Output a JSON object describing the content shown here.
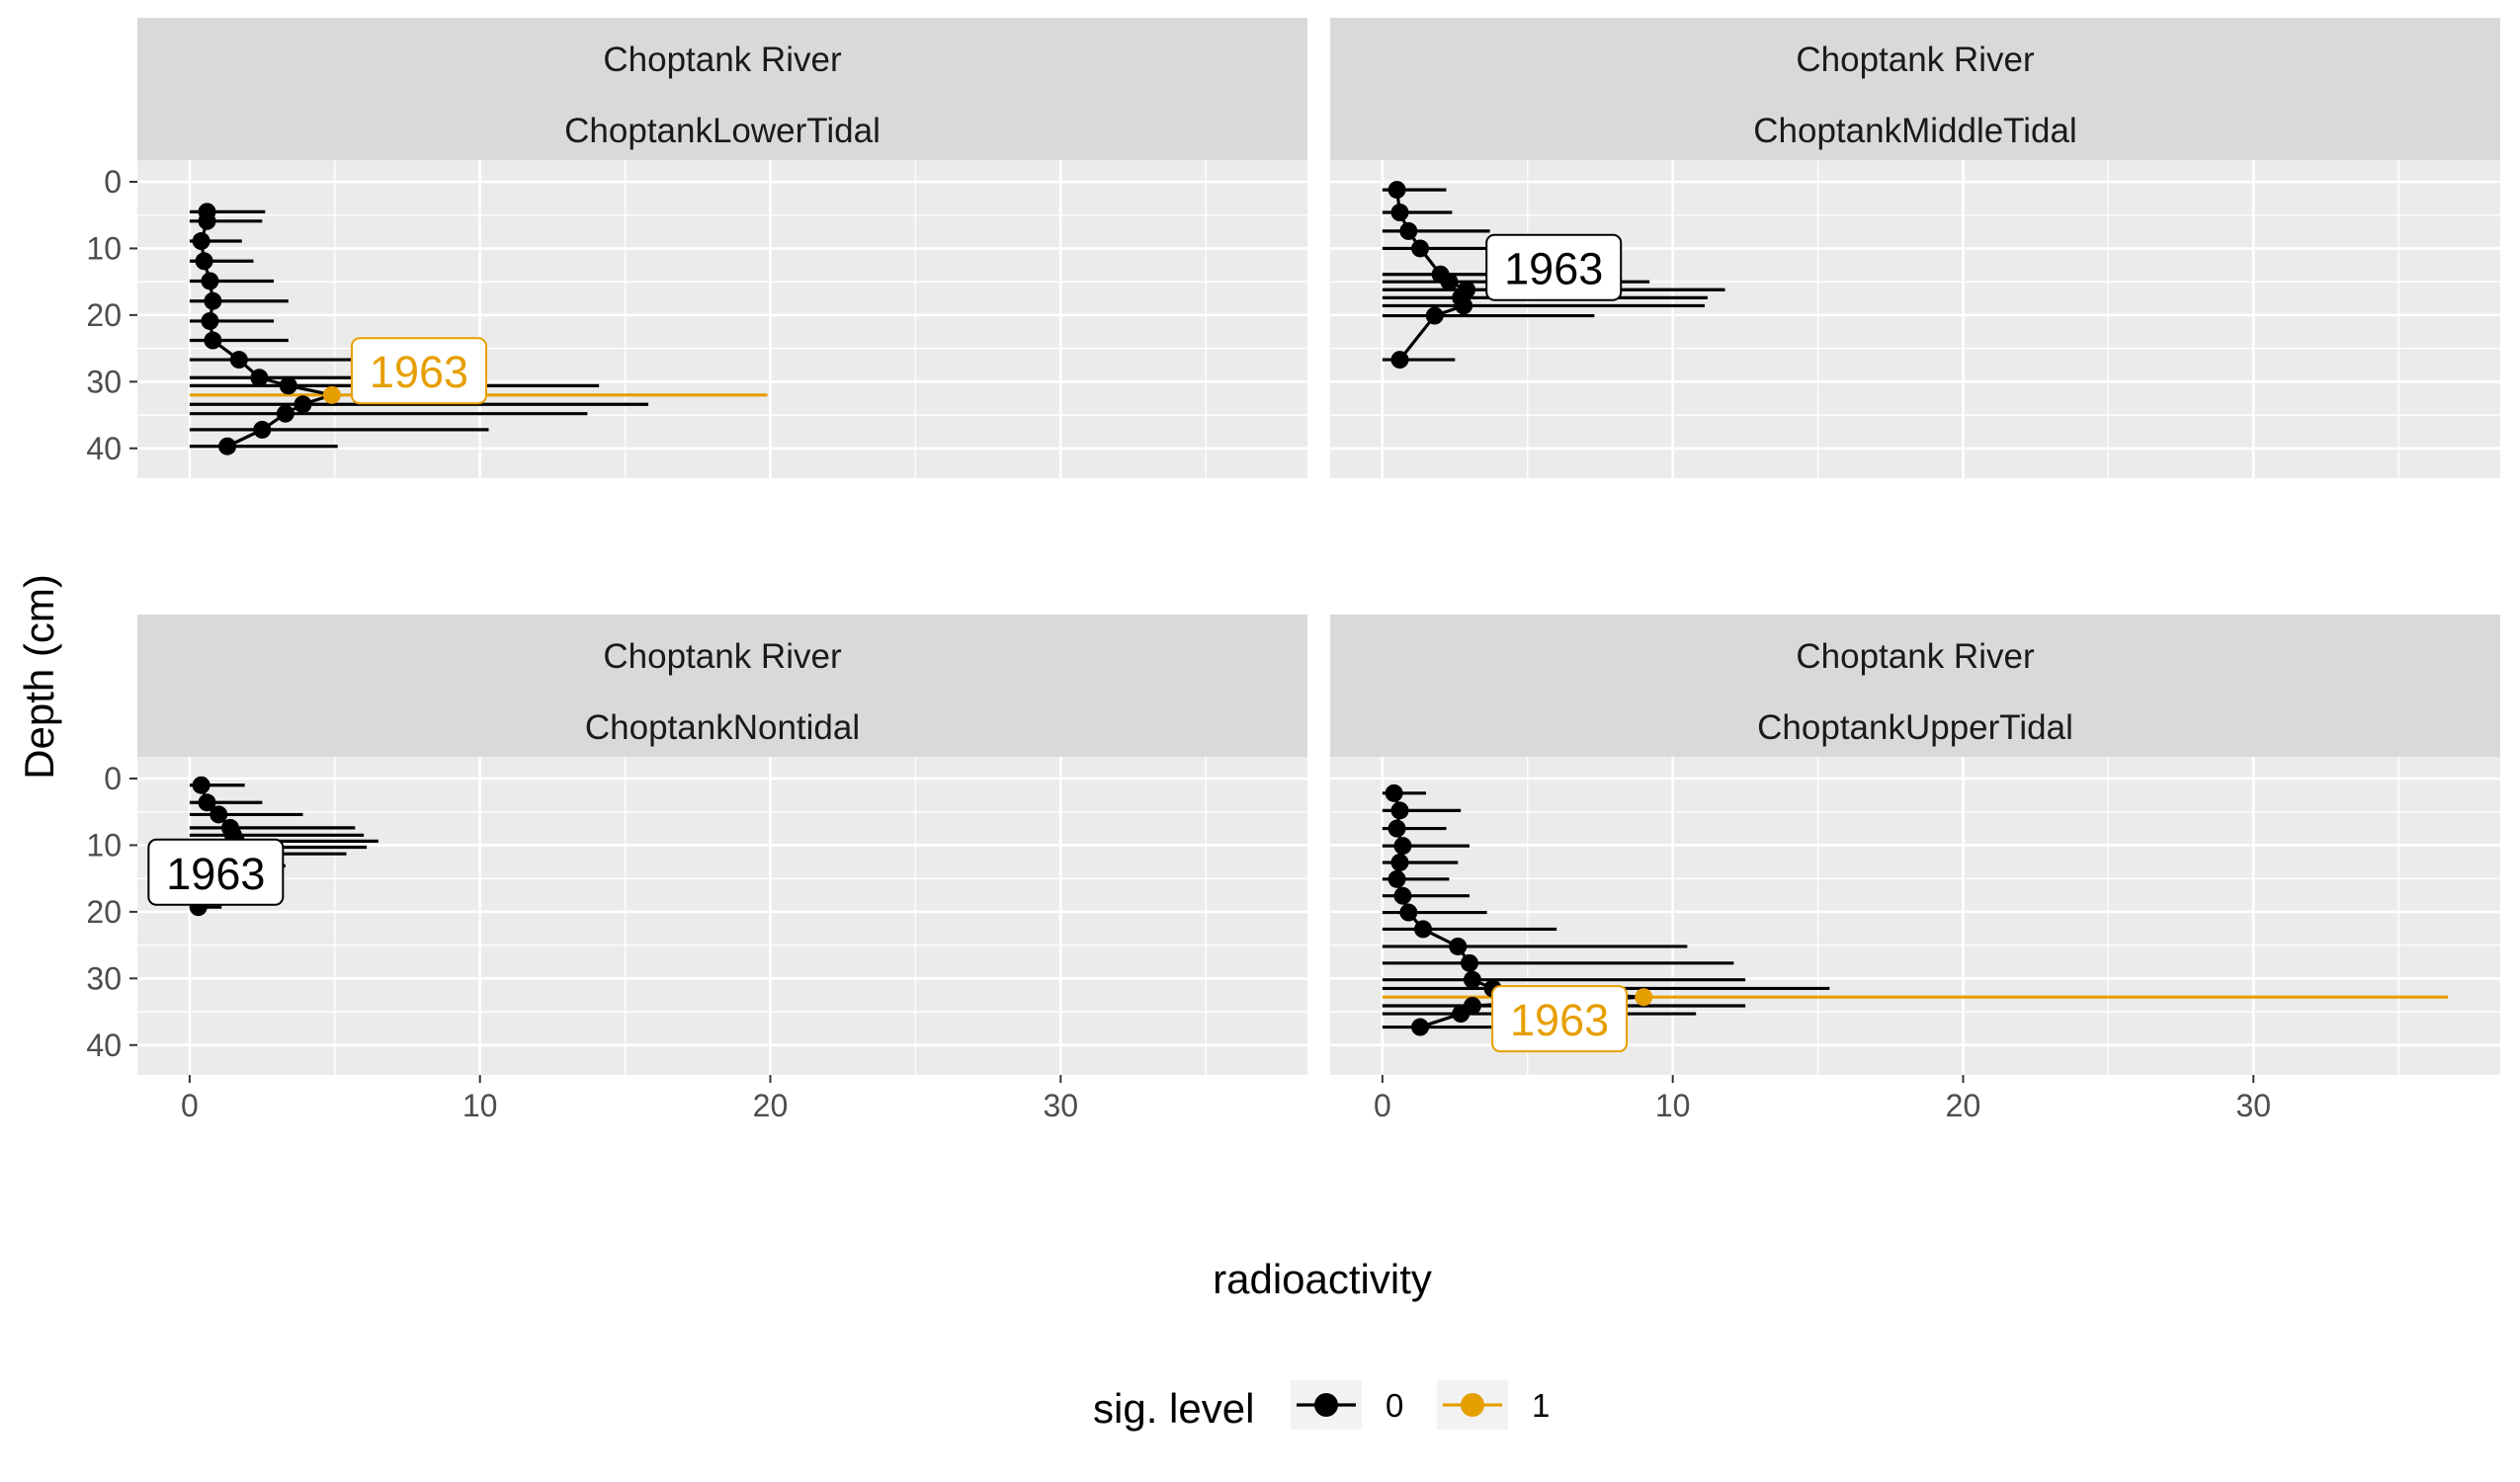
{
  "chart_data": {
    "type": "scatter",
    "xlabel": "radioactivity",
    "ylabel": "Depth (cm)",
    "xlim": [
      -1.8,
      38.5
    ],
    "ylim": [
      0,
      43
    ],
    "y_reversed": true,
    "x_ticks": [
      "0",
      "10",
      "20",
      "30"
    ],
    "y_ticks": [
      "0",
      "10",
      "20",
      "30",
      "40"
    ],
    "grid": true,
    "legend": {
      "title": "sig. level",
      "placement": "bottom",
      "entries": [
        {
          "label": "0",
          "color": "#000000"
        },
        {
          "label": "1",
          "color": "#E69F00"
        }
      ]
    },
    "colors": {
      "sig0": "#000000",
      "sig1": "#E69F00",
      "panel_bg": "#EBEBEB",
      "strip_bg": "#D9D9D9",
      "grid": "#FFFFFF"
    },
    "panels": [
      {
        "strip_top": "Choptank River",
        "strip_bottom": "ChoptankLowerTidal",
        "label": {
          "text": "1963",
          "x": 7.9,
          "y": 28.8,
          "sig": 1
        },
        "points": [
          {
            "depth": 4.5,
            "value": 0.6,
            "sig": 0,
            "xmin": 0,
            "xmax": 2.6
          },
          {
            "depth": 5.9,
            "value": 0.6,
            "sig": 0,
            "xmin": 0,
            "xmax": 2.5
          },
          {
            "depth": 8.9,
            "value": 0.4,
            "sig": 0,
            "xmin": 0,
            "xmax": 1.8
          },
          {
            "depth": 11.9,
            "value": 0.5,
            "sig": 0,
            "xmin": 0,
            "xmax": 2.2
          },
          {
            "depth": 14.9,
            "value": 0.7,
            "sig": 0,
            "xmin": 0,
            "xmax": 2.9
          },
          {
            "depth": 17.9,
            "value": 0.8,
            "sig": 0,
            "xmin": 0,
            "xmax": 3.4
          },
          {
            "depth": 20.9,
            "value": 0.7,
            "sig": 0,
            "xmin": 0,
            "xmax": 2.9
          },
          {
            "depth": 23.8,
            "value": 0.8,
            "sig": 0,
            "xmin": 0,
            "xmax": 3.4
          },
          {
            "depth": 26.7,
            "value": 1.7,
            "sig": 0,
            "xmin": 0,
            "xmax": 5.6
          },
          {
            "depth": 29.4,
            "value": 2.4,
            "sig": 0,
            "xmin": 0,
            "xmax": 7.6
          },
          {
            "depth": 30.6,
            "value": 3.4,
            "sig": 0,
            "xmin": 0,
            "xmax": 14.1
          },
          {
            "depth": 32.0,
            "value": 4.9,
            "sig": 1,
            "xmin": 0,
            "xmax": 19.9
          },
          {
            "depth": 33.4,
            "value": 3.9,
            "sig": 0,
            "xmin": 0,
            "xmax": 15.8
          },
          {
            "depth": 34.8,
            "value": 3.3,
            "sig": 0,
            "xmin": 0,
            "xmax": 13.7
          },
          {
            "depth": 37.2,
            "value": 2.5,
            "sig": 0,
            "xmin": 0,
            "xmax": 10.3
          },
          {
            "depth": 39.7,
            "value": 1.3,
            "sig": 0,
            "xmin": 0,
            "xmax": 5.1
          }
        ]
      },
      {
        "strip_top": "Choptank River",
        "strip_bottom": "ChoptankMiddleTidal",
        "label": {
          "text": "1963",
          "x": 5.9,
          "y": 13.3,
          "sig": 0
        },
        "points": [
          {
            "depth": 1.2,
            "value": 0.5,
            "sig": 0,
            "xmin": 0,
            "xmax": 2.2
          },
          {
            "depth": 4.6,
            "value": 0.6,
            "sig": 0,
            "xmin": 0,
            "xmax": 2.4
          },
          {
            "depth": 7.4,
            "value": 0.9,
            "sig": 0,
            "xmin": 0,
            "xmax": 3.7
          },
          {
            "depth": 10.0,
            "value": 1.3,
            "sig": 0,
            "xmin": 0,
            "xmax": 5.3
          },
          {
            "depth": 13.9,
            "value": 2.0,
            "sig": 0,
            "xmin": 0,
            "xmax": 7.5
          },
          {
            "depth": 15.0,
            "value": 2.3,
            "sig": 0,
            "xmin": 0,
            "xmax": 9.2
          },
          {
            "depth": 16.2,
            "value": 2.9,
            "sig": 0,
            "xmin": 0,
            "xmax": 11.8
          },
          {
            "depth": 17.4,
            "value": 2.7,
            "sig": 0,
            "xmin": 0,
            "xmax": 11.2
          },
          {
            "depth": 18.6,
            "value": 2.8,
            "sig": 0,
            "xmin": 0,
            "xmax": 11.1
          },
          {
            "depth": 20.1,
            "value": 1.8,
            "sig": 0,
            "xmin": 0,
            "xmax": 7.3
          },
          {
            "depth": 26.7,
            "value": 0.6,
            "sig": 0,
            "xmin": 0,
            "xmax": 2.5
          }
        ]
      },
      {
        "strip_top": "Choptank River",
        "strip_bottom": "ChoptankNontidal",
        "label": {
          "text": "1963",
          "x": 0.9,
          "y": 14.5,
          "sig": 0
        },
        "points": [
          {
            "depth": 1.0,
            "value": 0.4,
            "sig": 0,
            "xmin": 0,
            "xmax": 1.9
          },
          {
            "depth": 3.6,
            "value": 0.6,
            "sig": 0,
            "xmin": 0,
            "xmax": 2.5
          },
          {
            "depth": 5.4,
            "value": 1.0,
            "sig": 0,
            "xmin": 0,
            "xmax": 3.9
          },
          {
            "depth": 7.4,
            "value": 1.4,
            "sig": 0,
            "xmin": 0,
            "xmax": 5.7
          },
          {
            "depth": 8.5,
            "value": 1.5,
            "sig": 0,
            "xmin": 0,
            "xmax": 6.0
          },
          {
            "depth": 9.4,
            "value": 1.6,
            "sig": 0,
            "xmin": 0,
            "xmax": 6.5
          },
          {
            "depth": 10.3,
            "value": 1.5,
            "sig": 0,
            "xmin": 0,
            "xmax": 6.1
          },
          {
            "depth": 11.3,
            "value": 1.3,
            "sig": 0,
            "xmin": 0,
            "xmax": 5.4
          },
          {
            "depth": 13.1,
            "value": 0.9,
            "sig": 0,
            "xmin": 0,
            "xmax": 3.3
          },
          {
            "depth": 17.6,
            "value": 0.4,
            "sig": 0,
            "xmin": 0,
            "xmax": 1.5
          },
          {
            "depth": 19.3,
            "value": 0.3,
            "sig": 0,
            "xmin": 0,
            "xmax": 1.1
          }
        ]
      },
      {
        "strip_top": "Choptank River",
        "strip_bottom": "ChoptankUpperTidal",
        "label": {
          "text": "1963",
          "x": 6.1,
          "y": 36.5,
          "sig": 1
        },
        "points": [
          {
            "depth": 2.2,
            "value": 0.4,
            "sig": 0,
            "xmin": 0,
            "xmax": 1.5
          },
          {
            "depth": 4.8,
            "value": 0.6,
            "sig": 0,
            "xmin": 0,
            "xmax": 2.7
          },
          {
            "depth": 7.5,
            "value": 0.5,
            "sig": 0,
            "xmin": 0,
            "xmax": 2.2
          },
          {
            "depth": 10.1,
            "value": 0.7,
            "sig": 0,
            "xmin": 0,
            "xmax": 3.0
          },
          {
            "depth": 12.6,
            "value": 0.6,
            "sig": 0,
            "xmin": 0,
            "xmax": 2.6
          },
          {
            "depth": 15.1,
            "value": 0.5,
            "sig": 0,
            "xmin": 0,
            "xmax": 2.3
          },
          {
            "depth": 17.6,
            "value": 0.7,
            "sig": 0,
            "xmin": 0,
            "xmax": 3.0
          },
          {
            "depth": 20.1,
            "value": 0.9,
            "sig": 0,
            "xmin": 0,
            "xmax": 3.6
          },
          {
            "depth": 22.6,
            "value": 1.4,
            "sig": 0,
            "xmin": 0,
            "xmax": 6.0
          },
          {
            "depth": 25.2,
            "value": 2.6,
            "sig": 0,
            "xmin": 0,
            "xmax": 10.5
          },
          {
            "depth": 27.7,
            "value": 3.0,
            "sig": 0,
            "xmin": 0,
            "xmax": 12.1
          },
          {
            "depth": 30.2,
            "value": 3.1,
            "sig": 0,
            "xmin": 0,
            "xmax": 12.5
          },
          {
            "depth": 31.5,
            "value": 3.8,
            "sig": 0,
            "xmin": 0,
            "xmax": 15.4
          },
          {
            "depth": 32.8,
            "value": 9.0,
            "sig": 1,
            "xmin": 0,
            "xmax": 36.7
          },
          {
            "depth": 34.1,
            "value": 3.1,
            "sig": 0,
            "xmin": 0,
            "xmax": 12.5
          },
          {
            "depth": 35.3,
            "value": 2.7,
            "sig": 0,
            "xmin": 0,
            "xmax": 10.8
          },
          {
            "depth": 37.3,
            "value": 1.3,
            "sig": 0,
            "xmin": 0,
            "xmax": 5.2
          }
        ]
      }
    ]
  }
}
